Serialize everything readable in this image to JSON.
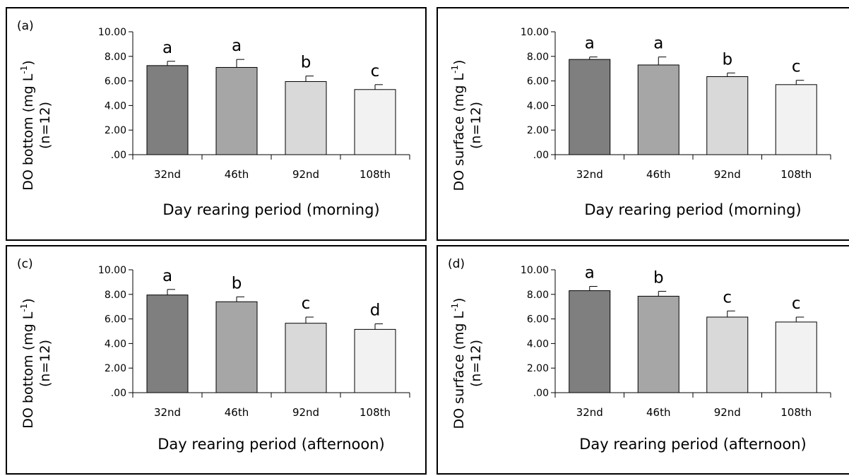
{
  "chart_data": [
    {
      "type": "bar",
      "panel_label": "(a)",
      "categories": [
        "32nd",
        "46th",
        "92nd",
        "108th"
      ],
      "values": [
        7.25,
        7.1,
        5.95,
        5.3
      ],
      "errors": [
        0.35,
        0.65,
        0.45,
        0.4
      ],
      "letters": [
        "a",
        "a",
        "b",
        "c"
      ],
      "yticks": [
        ".00",
        "2.00",
        "4.00",
        "6.00",
        "8.00",
        "10.00"
      ],
      "ylim": [
        0,
        10
      ],
      "ylabel_line1": "DO bottom (mg L",
      "ylabel_sup": "-1",
      "ylabel_close": ")",
      "ylabel_line2": "(n=12)",
      "xlabel": "Day rearing period (morning)",
      "colors": [
        "#7f7f7f",
        "#a6a6a6",
        "#d9d9d9",
        "#f2f2f2"
      ]
    },
    {
      "type": "bar",
      "panel_label": "",
      "categories": [
        "32nd",
        "46th",
        "92nd",
        "108th"
      ],
      "values": [
        7.75,
        7.3,
        6.35,
        5.7
      ],
      "errors": [
        0.2,
        0.65,
        0.3,
        0.35
      ],
      "letters": [
        "a",
        "a",
        "b",
        "c"
      ],
      "yticks": [
        ".00",
        "2.00",
        "4.00",
        "6.00",
        "8.00",
        "10.00"
      ],
      "ylim": [
        0,
        10
      ],
      "ylabel_line1": "DO surface (mg L",
      "ylabel_sup": "-1",
      "ylabel_close": ")",
      "ylabel_line2": "(n=12)",
      "xlabel": "Day rearing period (morning)",
      "colors": [
        "#7f7f7f",
        "#a6a6a6",
        "#d9d9d9",
        "#f2f2f2"
      ]
    },
    {
      "type": "bar",
      "panel_label": "(c)",
      "categories": [
        "32nd",
        "46th",
        "92nd",
        "108th"
      ],
      "values": [
        7.95,
        7.4,
        5.65,
        5.15
      ],
      "errors": [
        0.45,
        0.4,
        0.5,
        0.45
      ],
      "letters": [
        "a",
        "b",
        "c",
        "d"
      ],
      "yticks": [
        ".00",
        "2.00",
        "4.00",
        "6.00",
        "8.00",
        "10.00"
      ],
      "ylim": [
        0,
        10
      ],
      "ylabel_line1": "DO bottom (mg L",
      "ylabel_sup": "-1",
      "ylabel_close": ")",
      "ylabel_line2": "(n=12)",
      "xlabel": "Day rearing period (afternoon)",
      "colors": [
        "#7f7f7f",
        "#a6a6a6",
        "#d9d9d9",
        "#f2f2f2"
      ]
    },
    {
      "type": "bar",
      "panel_label": "(d)",
      "categories": [
        "32nd",
        "46th",
        "92nd",
        "108th"
      ],
      "values": [
        8.3,
        7.85,
        6.15,
        5.75
      ],
      "errors": [
        0.35,
        0.4,
        0.5,
        0.4
      ],
      "letters": [
        "a",
        "b",
        "c",
        "c"
      ],
      "yticks": [
        ".00",
        "2.00",
        "4.00",
        "6.00",
        "8.00",
        "10.00"
      ],
      "ylim": [
        0,
        10
      ],
      "ylabel_line1": "DO surface (mg L",
      "ylabel_sup": "-1",
      "ylabel_close": ")",
      "ylabel_line2": "(n=12)",
      "xlabel": "Day rearing period (afternoon)",
      "colors": [
        "#7f7f7f",
        "#a6a6a6",
        "#d9d9d9",
        "#f2f2f2"
      ]
    }
  ]
}
